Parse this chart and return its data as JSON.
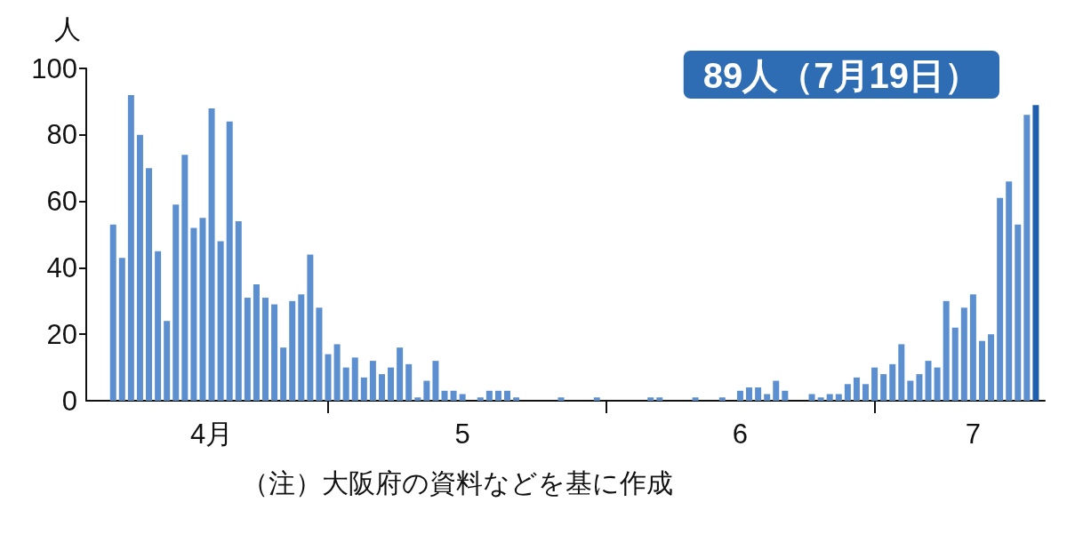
{
  "chart_data": {
    "type": "bar",
    "ylabel": "人",
    "x": [
      "--04-07",
      "--04-08",
      "--04-09",
      "--04-10",
      "--04-11",
      "--04-12",
      "--04-13",
      "--04-14",
      "--04-15",
      "--04-16",
      "--04-17",
      "--04-18",
      "--04-19",
      "--04-20",
      "--04-21",
      "--04-22",
      "--04-23",
      "--04-24",
      "--04-25",
      "--04-26",
      "--04-27",
      "--04-28",
      "--04-29",
      "--04-30",
      "--05-01",
      "--05-02",
      "--05-03",
      "--05-04",
      "--05-05",
      "--05-06",
      "--05-07",
      "--05-08",
      "--05-09",
      "--05-10",
      "--05-11",
      "--05-12",
      "--05-13",
      "--05-14",
      "--05-15",
      "--05-16",
      "--05-17",
      "--05-18",
      "--05-19",
      "--05-20",
      "--05-21",
      "--05-22",
      "--05-23",
      "--05-24",
      "--05-25",
      "--05-26",
      "--05-27",
      "--05-28",
      "--05-29",
      "--05-30",
      "--05-31",
      "--06-01",
      "--06-02",
      "--06-03",
      "--06-04",
      "--06-05",
      "--06-06",
      "--06-07",
      "--06-08",
      "--06-09",
      "--06-10",
      "--06-11",
      "--06-12",
      "--06-13",
      "--06-14",
      "--06-15",
      "--06-16",
      "--06-17",
      "--06-18",
      "--06-19",
      "--06-20",
      "--06-21",
      "--06-22",
      "--06-23",
      "--06-24",
      "--06-25",
      "--06-26",
      "--06-27",
      "--06-28",
      "--06-29",
      "--06-30",
      "--07-01",
      "--07-02",
      "--07-03",
      "--07-04",
      "--07-05",
      "--07-06",
      "--07-07",
      "--07-08",
      "--07-09",
      "--07-10",
      "--07-11",
      "--07-12",
      "--07-13",
      "--07-14",
      "--07-15",
      "--07-16",
      "--07-17",
      "--07-18",
      "--07-19"
    ],
    "values": [
      53,
      43,
      92,
      80,
      70,
      45,
      24,
      59,
      74,
      52,
      55,
      88,
      48,
      84,
      54,
      31,
      35,
      31,
      29,
      16,
      30,
      32,
      44,
      28,
      14,
      17,
      10,
      13,
      7,
      12,
      8,
      10,
      16,
      11,
      1,
      6,
      12,
      3,
      3,
      2,
      0,
      1,
      3,
      3,
      3,
      1,
      0,
      0,
      0,
      0,
      1,
      0,
      0,
      0,
      1,
      0,
      0,
      0,
      0,
      0,
      1,
      1,
      0,
      0,
      0,
      1,
      0,
      0,
      1,
      0,
      3,
      4,
      4,
      2,
      6,
      3,
      0,
      0,
      2,
      1,
      2,
      2,
      5,
      7,
      5,
      10,
      8,
      11,
      17,
      6,
      8,
      12,
      10,
      30,
      22,
      28,
      32,
      18,
      20,
      61,
      66,
      53,
      86,
      89
    ],
    "colors": [
      "#5b8fd0",
      "#5b8fd0",
      "#5b8fd0",
      "#5b8fd0",
      "#5b8fd0",
      "#5b8fd0",
      "#5b8fd0",
      "#5b8fd0",
      "#5b8fd0",
      "#5b8fd0",
      "#5b8fd0",
      "#5b8fd0",
      "#5b8fd0",
      "#5b8fd0",
      "#5b8fd0",
      "#5b8fd0",
      "#5b8fd0",
      "#5b8fd0",
      "#5b8fd0",
      "#5b8fd0",
      "#5b8fd0",
      "#5b8fd0",
      "#5b8fd0",
      "#5b8fd0",
      "#5b8fd0",
      "#5b8fd0",
      "#5b8fd0",
      "#5b8fd0",
      "#5b8fd0",
      "#5b8fd0",
      "#5b8fd0",
      "#5b8fd0",
      "#5b8fd0",
      "#5b8fd0",
      "#5b8fd0",
      "#5b8fd0",
      "#5b8fd0",
      "#5b8fd0",
      "#5b8fd0",
      "#5b8fd0",
      "#5b8fd0",
      "#5b8fd0",
      "#5b8fd0",
      "#5b8fd0",
      "#5b8fd0",
      "#5b8fd0",
      "#5b8fd0",
      "#5b8fd0",
      "#5b8fd0",
      "#5b8fd0",
      "#5b8fd0",
      "#5b8fd0",
      "#5b8fd0",
      "#5b8fd0",
      "#5b8fd0",
      "#5b8fd0",
      "#5b8fd0",
      "#5b8fd0",
      "#5b8fd0",
      "#5b8fd0",
      "#5b8fd0",
      "#5b8fd0",
      "#5b8fd0",
      "#5b8fd0",
      "#5b8fd0",
      "#5b8fd0",
      "#5b8fd0",
      "#5b8fd0",
      "#5b8fd0",
      "#5b8fd0",
      "#5b8fd0",
      "#5b8fd0",
      "#5b8fd0",
      "#5b8fd0",
      "#5b8fd0",
      "#5b8fd0",
      "#5b8fd0",
      "#5b8fd0",
      "#5b8fd0",
      "#5b8fd0",
      "#5b8fd0",
      "#5b8fd0",
      "#5b8fd0",
      "#5b8fd0",
      "#5b8fd0",
      "#5b8fd0",
      "#5b8fd0",
      "#5b8fd0",
      "#5b8fd0",
      "#5b8fd0",
      "#5b8fd0",
      "#5b8fd0",
      "#5b8fd0",
      "#5b8fd0",
      "#5b8fd0",
      "#5b8fd0",
      "#5b8fd0",
      "#5b8fd0",
      "#5b8fd0",
      "#5b8fd0",
      "#5b8fd0",
      "#5b8fd0",
      "#5b8fd0",
      "#1f5fad"
    ],
    "xlim": [
      "--04-04",
      "--07-20"
    ],
    "xticks": [
      {
        "value": "--04-18",
        "label": "4月"
      },
      {
        "value": "--05-01",
        "label": null
      },
      {
        "value": "--05-16",
        "label": "5"
      },
      {
        "value": "--06-01",
        "label": null
      },
      {
        "value": "--06-16",
        "label": "6"
      },
      {
        "value": "--07-01",
        "label": null
      },
      {
        "value": "--07-12",
        "label": "7"
      }
    ],
    "ylim": [
      0,
      100
    ],
    "yticks": [
      0,
      20,
      40,
      60,
      80,
      100
    ],
    "grid": false,
    "annotations": [
      "89人（7月19日）",
      "（注）大阪府の資料などを基に作成"
    ]
  }
}
